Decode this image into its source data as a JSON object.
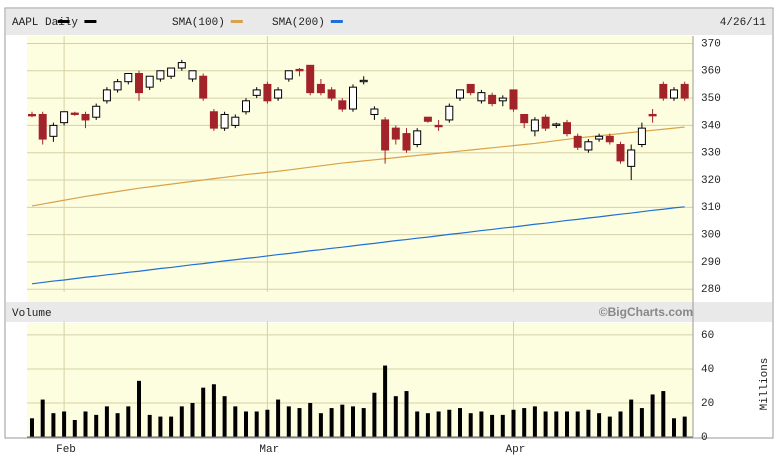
{
  "chart_data": [
    {
      "type": "candlestick",
      "title": "AAPL Daily",
      "date": "4/26/11",
      "color": "#000000",
      "up_color": "#ffffff",
      "down_color": "#a3232b",
      "open": [
        344,
        344,
        336,
        341,
        344.5,
        344,
        343,
        349,
        353,
        356,
        359,
        354,
        357,
        358,
        361,
        357,
        358,
        345,
        339,
        340,
        345,
        351,
        355,
        350,
        357,
        360.5,
        362,
        355,
        353,
        349,
        346,
        356,
        344,
        342,
        339,
        337,
        333,
        343,
        340,
        342,
        350,
        355,
        349,
        351,
        349,
        353,
        344,
        338,
        343,
        340,
        341,
        336,
        331,
        335,
        336,
        333,
        325,
        333,
        344,
        355,
        350,
        355
      ],
      "high": [
        345,
        345,
        341,
        345,
        345,
        345,
        348,
        354,
        357,
        359,
        360,
        358,
        360,
        361,
        364,
        360,
        359,
        346,
        345,
        344,
        350,
        354,
        356,
        354,
        360,
        361,
        362,
        357,
        354,
        350,
        355,
        358,
        347,
        343,
        340,
        339,
        339,
        343,
        342,
        348,
        353,
        355,
        353,
        352,
        351,
        353,
        344,
        343,
        344,
        341,
        342,
        337,
        335,
        337,
        337,
        334,
        333,
        341,
        346,
        356,
        354,
        356
      ],
      "low": [
        343,
        333,
        334,
        340,
        343.5,
        339,
        342,
        348,
        352,
        355,
        349,
        353,
        356,
        357,
        360,
        356,
        349,
        338,
        338,
        339,
        344,
        350,
        348,
        349,
        356,
        358,
        351,
        351,
        349,
        345,
        345,
        355,
        342,
        326,
        333,
        330,
        332,
        341,
        338,
        341,
        349,
        351,
        348,
        347,
        347,
        345,
        339,
        336,
        338,
        339,
        336,
        331,
        330,
        334,
        333,
        326,
        320,
        332,
        341,
        349,
        349,
        349
      ],
      "close": [
        343.5,
        335,
        340,
        345,
        344,
        342,
        347,
        353,
        356,
        359,
        352,
        358,
        360,
        361,
        363,
        360,
        350,
        339,
        344,
        343,
        349,
        353,
        349,
        353,
        360,
        360,
        352,
        352,
        350,
        346,
        354,
        356.5,
        346,
        331,
        335,
        331,
        338,
        341.5,
        339.5,
        347,
        353,
        352,
        352,
        348,
        350,
        346,
        341,
        342,
        339,
        340.5,
        337,
        332,
        334,
        336,
        334,
        327,
        331,
        339,
        343.5,
        350,
        353,
        350
      ],
      "series": [
        {
          "name": "SMA(100)",
          "color": "#d9a24a",
          "values": [
            310.5,
            311.2,
            311.9,
            312.6,
            313.3,
            314.0,
            314.6,
            315.2,
            315.8,
            316.4,
            317.0,
            317.5,
            318.0,
            318.5,
            319.0,
            319.5,
            320.0,
            320.5,
            321.0,
            321.5,
            322.0,
            322.4,
            322.8,
            323.2,
            323.7,
            324.2,
            324.7,
            325.2,
            325.7,
            326.2,
            326.6,
            327.0,
            327.4,
            327.8,
            328.2,
            328.6,
            329.0,
            329.4,
            329.8,
            330.2,
            330.6,
            331.0,
            331.4,
            331.8,
            332.2,
            332.6,
            333.0,
            333.4,
            333.9,
            334.4,
            334.9,
            335.4,
            335.8,
            336.2,
            336.6,
            337.0,
            337.4,
            337.8,
            338.2,
            338.6,
            339.0,
            339.4
          ]
        },
        {
          "name": "SMA(200)",
          "color": "#1f6fd6",
          "values": [
            282.0,
            282.5,
            283.0,
            283.4,
            283.9,
            284.4,
            284.8,
            285.3,
            285.7,
            286.2,
            286.6,
            287.1,
            287.6,
            288.0,
            288.5,
            289.0,
            289.4,
            289.9,
            290.4,
            290.8,
            291.3,
            291.7,
            292.2,
            292.7,
            293.1,
            293.6,
            294.1,
            294.5,
            295.0,
            295.4,
            295.9,
            296.4,
            296.8,
            297.3,
            297.8,
            298.2,
            298.7,
            299.1,
            299.6,
            300.1,
            300.5,
            301.0,
            301.5,
            301.9,
            302.4,
            302.8,
            303.3,
            303.8,
            304.2,
            304.7,
            305.2,
            305.6,
            306.1,
            306.5,
            307.0,
            307.5,
            307.9,
            308.4,
            308.9,
            309.3,
            309.8,
            310.2
          ]
        }
      ],
      "ylim": [
        279,
        372
      ],
      "yticks": [
        280,
        290,
        300,
        310,
        320,
        330,
        340,
        350,
        360,
        370
      ],
      "grid": true
    },
    {
      "type": "bar",
      "title": "Volume",
      "watermark": "©BigCharts.com",
      "y_label": "Millions",
      "color": "#000000",
      "categories": [
        null,
        null,
        null,
        "Feb",
        null,
        null,
        null,
        null,
        null,
        null,
        null,
        null,
        null,
        null,
        null,
        null,
        null,
        null,
        null,
        null,
        null,
        null,
        "Mar",
        null,
        null,
        null,
        null,
        null,
        null,
        null,
        null,
        null,
        null,
        null,
        null,
        null,
        null,
        null,
        null,
        null,
        null,
        null,
        null,
        null,
        null,
        "Apr",
        null,
        null,
        null,
        null,
        null,
        null,
        null,
        null,
        null,
        null,
        null,
        null,
        null,
        null,
        null,
        null
      ],
      "values": [
        11,
        22,
        14,
        15,
        10,
        15,
        13,
        18,
        14,
        18,
        33,
        13,
        12,
        12,
        18,
        20,
        29,
        31,
        24,
        18,
        15,
        15,
        16,
        22,
        18,
        17,
        20,
        14,
        17,
        19,
        18,
        17,
        26,
        42,
        24,
        27,
        15,
        14,
        15,
        16,
        17,
        14,
        15,
        13,
        13,
        16,
        17,
        18,
        15,
        15,
        15,
        15,
        16,
        14,
        12,
        15,
        22,
        17,
        25,
        27,
        11,
        12
      ],
      "ylim": [
        0,
        67
      ],
      "yticks": [
        0,
        20,
        40,
        60
      ],
      "grid": true
    }
  ]
}
